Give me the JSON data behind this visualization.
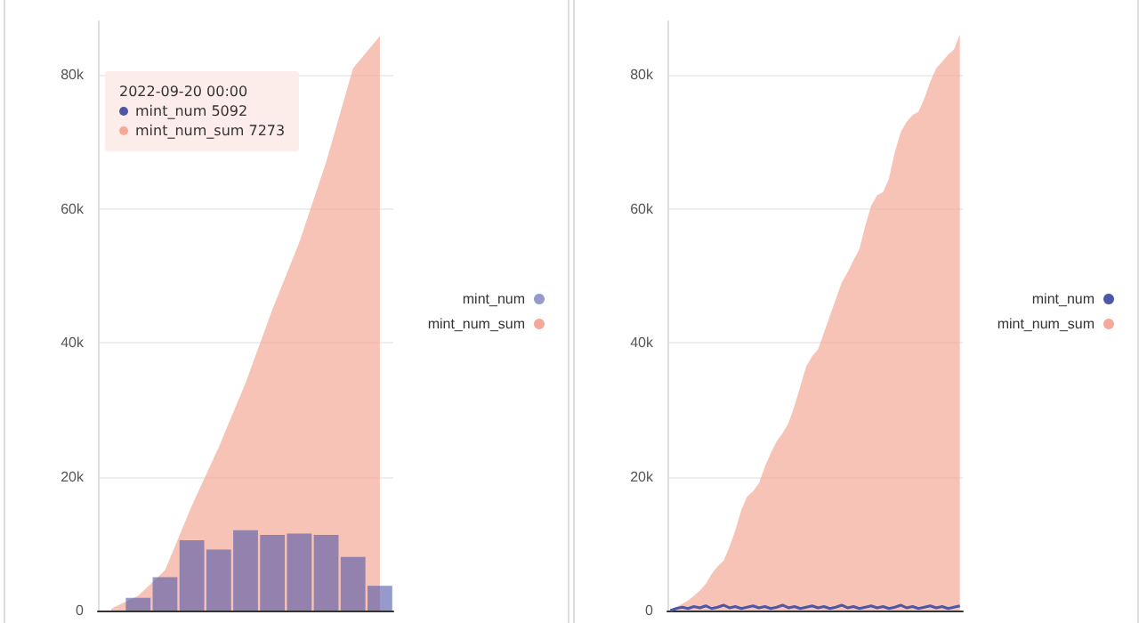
{
  "chart_data": [
    {
      "type": "bar",
      "categories": [
        null,
        null,
        null,
        null,
        null,
        null,
        null,
        null,
        null,
        null,
        null
      ],
      "series": [
        {
          "name": "mint_num",
          "color": "#4e56a6",
          "values": [
            0,
            1900,
            5000,
            10500,
            9100,
            12000,
            11300,
            11500,
            11300,
            8000,
            3700
          ]
        },
        {
          "name": "mint_num_sum",
          "type": "area",
          "color": "#f4a999",
          "values": [
            300,
            2200,
            6000,
            15700,
            24400,
            34000,
            45000,
            55000,
            67000,
            81000,
            85800
          ]
        }
      ],
      "ylim": [
        0,
        88000
      ],
      "yticks": [
        0,
        {
          "value": 20000,
          "label": "20k"
        },
        {
          "value": 40000,
          "label": "40k"
        },
        {
          "value": 60000,
          "label": "60k"
        },
        {
          "value": 80000,
          "label": "80k"
        }
      ],
      "grid": "y",
      "legend": "right",
      "marker": "none",
      "annotations": [
        "2022-09-20 00:00",
        "mint_num 5092",
        "mint_num_sum 7273"
      ]
    },
    {
      "type": "area",
      "categories": [
        null,
        null,
        null,
        null,
        null,
        null,
        null,
        null,
        null,
        null,
        null,
        null,
        null,
        null,
        null,
        null,
        null,
        null,
        null,
        null,
        null,
        null,
        null,
        null,
        null,
        null,
        null,
        null,
        null,
        null,
        null,
        null,
        null,
        null,
        null,
        null,
        null,
        null,
        null,
        null,
        null,
        null,
        null,
        null,
        null,
        null,
        null,
        null,
        null,
        null
      ],
      "series": [
        {
          "name": "mint_num",
          "type": "line",
          "color": "#4e56a6",
          "values": [
            0,
            300,
            500,
            300,
            600,
            400,
            700,
            300,
            500,
            800,
            400,
            600,
            300,
            500,
            700,
            400,
            600,
            300,
            500,
            800,
            400,
            600,
            300,
            500,
            700,
            400,
            600,
            300,
            500,
            800,
            400,
            600,
            300,
            500,
            700,
            400,
            600,
            300,
            500,
            800,
            400,
            600,
            300,
            500,
            700,
            400,
            600,
            300,
            500,
            700
          ]
        },
        {
          "name": "mint_num_sum",
          "color": "#f4a999",
          "values": [
            0,
            500,
            1000,
            1500,
            2200,
            3000,
            4000,
            5500,
            6600,
            7400,
            9500,
            12000,
            15000,
            17000,
            17800,
            19000,
            21500,
            23500,
            25300,
            26500,
            28000,
            30500,
            33500,
            36500,
            38000,
            39000,
            41500,
            44000,
            46500,
            49000,
            50500,
            52300,
            54000,
            57500,
            60500,
            62000,
            62500,
            64500,
            68500,
            71500,
            73000,
            74000,
            74500,
            76500,
            79000,
            81000,
            82000,
            83000,
            83800,
            86000
          ]
        }
      ],
      "ylim": [
        0,
        88000
      ],
      "yticks": [
        0,
        {
          "value": 20000,
          "label": "20k"
        },
        {
          "value": 40000,
          "label": "40k"
        },
        {
          "value": 60000,
          "label": "60k"
        },
        {
          "value": 80000,
          "label": "80k"
        }
      ],
      "grid": "y",
      "legend": "right",
      "marker": "none"
    }
  ]
}
